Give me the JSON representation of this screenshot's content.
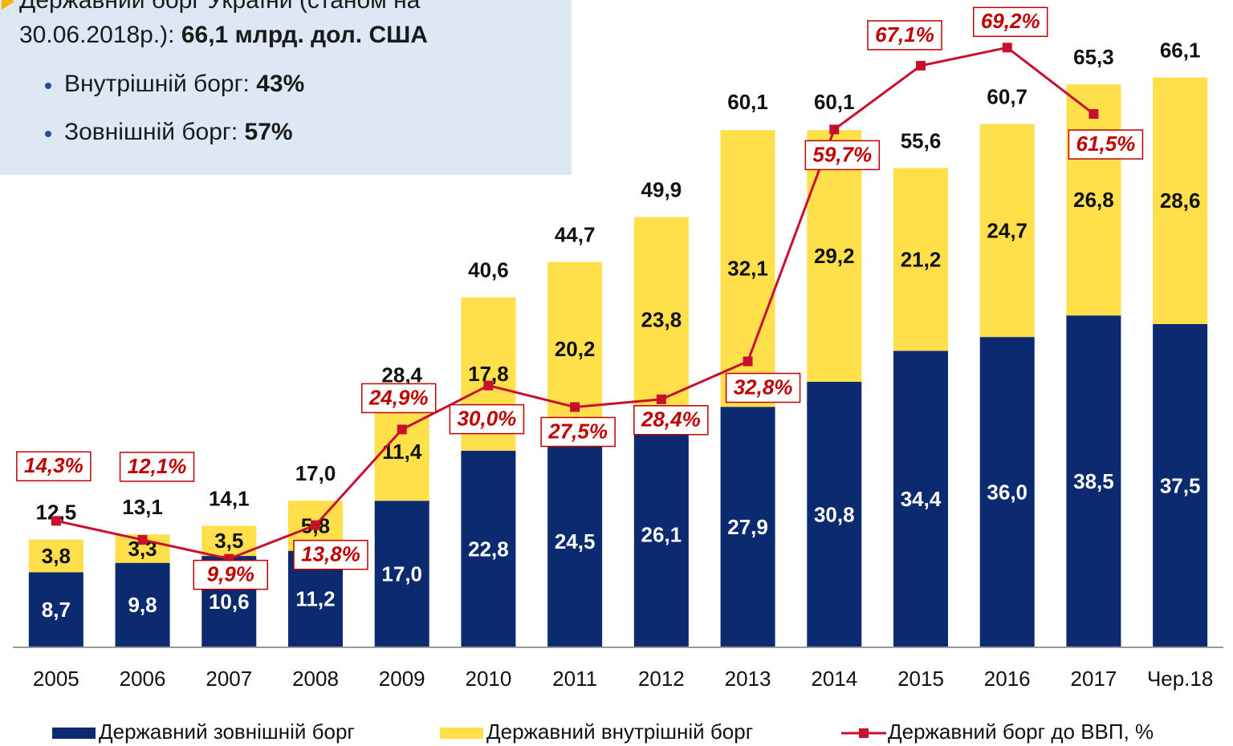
{
  "chart_data": {
    "type": "bar",
    "stacked": true,
    "categories": [
      "2005",
      "2006",
      "2007",
      "2008",
      "2009",
      "2010",
      "2011",
      "2012",
      "2013",
      "2014",
      "2015",
      "2016",
      "2017",
      "Чер.18"
    ],
    "series": [
      {
        "name": "Державний зовнішній борг",
        "color": "#0b2a6f",
        "values": [
          8.7,
          9.8,
          10.6,
          11.2,
          17.0,
          22.8,
          24.5,
          26.1,
          27.9,
          30.8,
          34.4,
          36.0,
          38.5,
          37.5
        ],
        "value_labels": [
          "8,7",
          "9,8",
          "10,6",
          "11,2",
          "17,0",
          "22,8",
          "24,5",
          "26,1",
          "27,9",
          "30,8",
          "34,4",
          "36,0",
          "38,5",
          "37,5"
        ]
      },
      {
        "name": "Державний внутрішній борг",
        "color": "#ffe04a",
        "values": [
          3.8,
          3.3,
          3.5,
          5.8,
          11.4,
          17.8,
          20.2,
          23.8,
          32.1,
          29.2,
          21.2,
          24.7,
          26.8,
          28.6
        ],
        "value_labels": [
          "3,8",
          "3,3",
          "3,5",
          "5,8",
          "11,4",
          "17,8",
          "20,2",
          "23,8",
          "32,1",
          "29,2",
          "21,2",
          "24,7",
          "26,8",
          "28,6"
        ]
      },
      {
        "name": "Державний борг до ВВП, %",
        "color": "#c8102e",
        "type": "line",
        "axis": "y2",
        "values": [
          14.3,
          12.1,
          9.9,
          13.8,
          24.9,
          30.0,
          27.5,
          28.4,
          32.8,
          59.7,
          67.1,
          69.2,
          61.5,
          null
        ],
        "value_labels": [
          "14,3%",
          "12,1%",
          "9,9%",
          "13,8%",
          "24,9%",
          "30,0%",
          "27,5%",
          "28,4%",
          "32,8%",
          "59,7%",
          "67,1%",
          "69,2%",
          "61,5%",
          null
        ]
      }
    ],
    "totals": {
      "values": [
        12.5,
        13.1,
        14.1,
        17.0,
        28.4,
        40.6,
        44.7,
        49.9,
        60.1,
        60.1,
        55.6,
        60.7,
        65.3,
        66.1
      ],
      "value_labels": [
        "12,5",
        "13,1",
        "14,1",
        "17,0",
        "28,4",
        "40,6",
        "44,7",
        "49,9",
        "60,1",
        "60,1",
        "55,6",
        "60,7",
        "65,3",
        "66,1"
      ]
    },
    "ylim": [
      0,
      75
    ],
    "y2lim": [
      0,
      75
    ],
    "legend": "bottom",
    "annotation": {
      "line1": "Державний борг України (станом на",
      "line2": "30.06.2018р.):",
      "line2_bold": "66,1 млрд. дол. США",
      "bullets": [
        {
          "label": "Внутрішній борг:",
          "value": "43%"
        },
        {
          "label": "Зовнішній борг:",
          "value": "57%"
        }
      ]
    }
  }
}
